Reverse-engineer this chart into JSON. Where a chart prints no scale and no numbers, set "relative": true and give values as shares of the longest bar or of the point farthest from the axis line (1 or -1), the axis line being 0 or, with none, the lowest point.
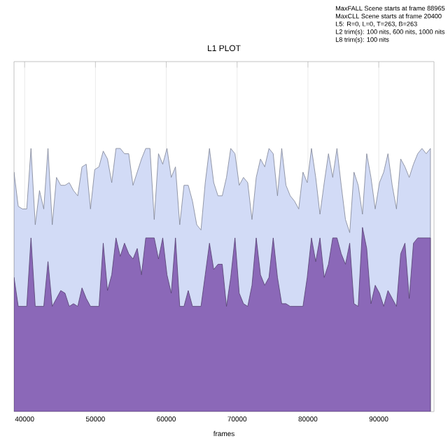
{
  "chart_data": {
    "type": "area",
    "title": "L1 PLOT",
    "xlabel": "frames",
    "annotations": [
      "MaxFALL Scene starts at frame 88965",
      "MaxCLL Scene starts at frame 20400",
      "L5: R=0, L=0, T=263, B=263",
      "L2 trim(s): 100 nits, 600 nits, 1000 nits",
      "L8 trim(s): 100 nits"
    ],
    "relative": true,
    "xlim": [
      38500,
      97800
    ],
    "xticks": [
      40000,
      50000,
      60000,
      70000,
      80000,
      90000
    ],
    "grid": "x",
    "x": [
      38500,
      39100,
      39700,
      40300,
      40900,
      41500,
      42100,
      42700,
      43300,
      43900,
      44500,
      45100,
      45700,
      46300,
      46900,
      47500,
      48100,
      48700,
      49300,
      49900,
      50500,
      51100,
      51700,
      52300,
      52900,
      53500,
      54100,
      54700,
      55300,
      55900,
      56500,
      57100,
      57700,
      58300,
      58900,
      59500,
      60100,
      60700,
      61300,
      61900,
      62500,
      63100,
      63700,
      64300,
      64900,
      65500,
      66100,
      66700,
      67300,
      67900,
      68500,
      69100,
      69700,
      70300,
      70900,
      71500,
      72100,
      72700,
      73300,
      73900,
      74500,
      75100,
      75700,
      76300,
      76900,
      77500,
      78100,
      78700,
      79300,
      79900,
      80500,
      81100,
      81700,
      82300,
      82900,
      83500,
      84100,
      84700,
      85300,
      85900,
      86500,
      87100,
      87700,
      88300,
      88900,
      89500,
      90100,
      90700,
      91300,
      91900,
      92500,
      93100,
      93700,
      94300,
      94900,
      95500,
      96100,
      96700,
      97300
    ],
    "series": [
      {
        "color": "#d2dbf6",
        "values": [
          0.91,
          0.78,
          0.77,
          0.77,
          1.0,
          0.71,
          0.84,
          0.77,
          1.0,
          0.71,
          0.89,
          0.86,
          0.86,
          0.87,
          0.84,
          0.82,
          0.93,
          0.94,
          0.77,
          0.92,
          0.93,
          0.99,
          0.96,
          0.87,
          1.0,
          1.0,
          0.98,
          0.98,
          0.86,
          0.91,
          0.96,
          1.0,
          1.0,
          0.73,
          0.98,
          0.94,
          1.0,
          0.89,
          0.93,
          0.71,
          0.86,
          0.86,
          0.8,
          0.71,
          0.69,
          0.87,
          1.0,
          0.87,
          0.82,
          0.82,
          0.89,
          1.0,
          0.98,
          0.86,
          0.89,
          0.87,
          0.73,
          0.89,
          0.96,
          0.93,
          1.0,
          0.98,
          0.82,
          1.0,
          0.86,
          0.82,
          0.8,
          0.77,
          0.91,
          0.87,
          1.0,
          0.89,
          0.75,
          0.87,
          0.98,
          0.89,
          1.0,
          0.86,
          0.73,
          0.68,
          0.91,
          0.86,
          0.75,
          0.98,
          0.89,
          0.77,
          0.87,
          0.91,
          0.98,
          0.86,
          0.77,
          0.96,
          0.93,
          0.89,
          0.94,
          0.98,
          1.0,
          0.98,
          1.0
        ]
      },
      {
        "color": "#8b68b8",
        "values": [
          0.51,
          0.4,
          0.4,
          0.4,
          0.66,
          0.4,
          0.4,
          0.4,
          0.57,
          0.4,
          0.43,
          0.46,
          0.45,
          0.4,
          0.41,
          0.4,
          0.47,
          0.43,
          0.4,
          0.4,
          0.4,
          0.64,
          0.46,
          0.52,
          0.66,
          0.59,
          0.64,
          0.6,
          0.58,
          0.62,
          0.52,
          0.66,
          0.66,
          0.66,
          0.58,
          0.66,
          0.52,
          0.45,
          0.66,
          0.4,
          0.4,
          0.46,
          0.4,
          0.4,
          0.4,
          0.52,
          0.64,
          0.54,
          0.56,
          0.56,
          0.4,
          0.51,
          0.66,
          0.45,
          0.41,
          0.4,
          0.48,
          0.66,
          0.52,
          0.48,
          0.51,
          0.66,
          0.51,
          0.41,
          0.41,
          0.4,
          0.4,
          0.4,
          0.4,
          0.51,
          0.66,
          0.57,
          0.66,
          0.51,
          0.56,
          0.66,
          0.66,
          0.6,
          0.56,
          0.64,
          0.41,
          0.4,
          0.7,
          0.62,
          0.41,
          0.48,
          0.45,
          0.4,
          0.46,
          0.43,
          0.4,
          0.6,
          0.64,
          0.43,
          0.64,
          0.66,
          0.66,
          0.66,
          0.66
        ]
      }
    ]
  }
}
